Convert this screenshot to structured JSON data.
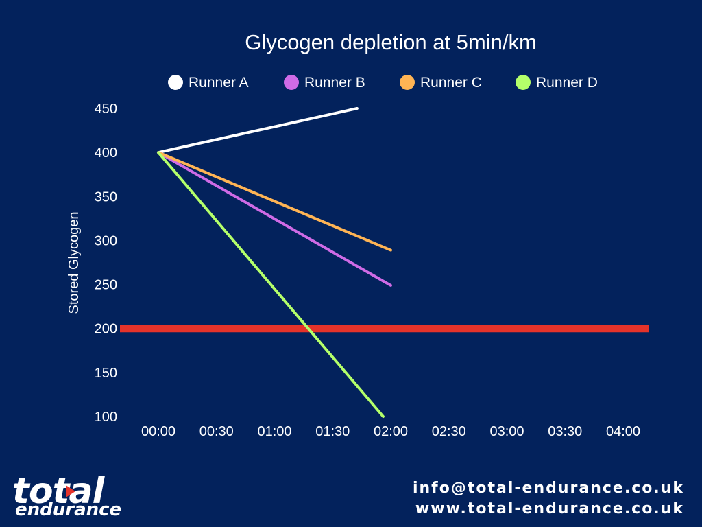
{
  "chart_data": {
    "type": "line",
    "title": "Glycogen depletion at 5min/km",
    "xlabel": "",
    "ylabel": "Stored Glycogen",
    "categories": [
      "00:00",
      "00:30",
      "01:00",
      "01:30",
      "02:00",
      "02:30",
      "03:00",
      "03:30",
      "04:00"
    ],
    "y_ticks": [
      450,
      400,
      350,
      300,
      250,
      200,
      150,
      100
    ],
    "ylim": [
      100,
      450
    ],
    "grid": false,
    "legend_position": "top",
    "series": [
      {
        "name": "Runner A",
        "color": "#ffffff",
        "start_x": 0,
        "start_y": 400,
        "end_x": 3.42,
        "end_y": 450
      },
      {
        "name": "Runner B",
        "color": "#cf6be6",
        "start_x": 0,
        "start_y": 400,
        "end_x": 4.0,
        "end_y": 249
      },
      {
        "name": "Runner C",
        "color": "#ffb454",
        "start_x": 0,
        "start_y": 400,
        "end_x": 4.0,
        "end_y": 289
      },
      {
        "name": "Runner D",
        "color": "#b4ff6a",
        "start_x": 0,
        "start_y": 400,
        "end_x": 3.87,
        "end_y": 100
      }
    ],
    "threshold": {
      "value": 200,
      "color": "#e5332a"
    }
  },
  "brand": {
    "line1": "total",
    "line2": "endurance"
  },
  "contact": {
    "email": "info@total-endurance.co.uk",
    "website": "www.total-endurance.co.uk"
  }
}
